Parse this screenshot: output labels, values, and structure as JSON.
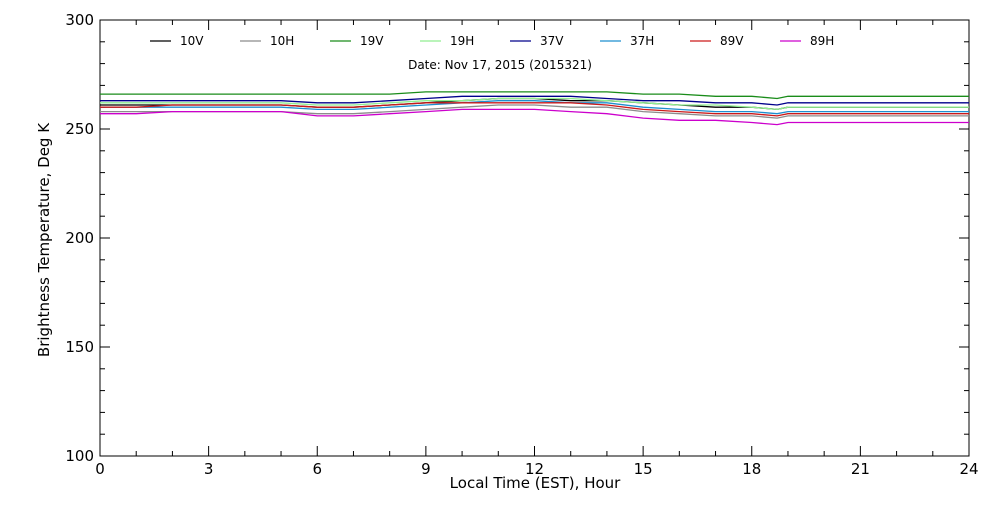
{
  "chart_data": {
    "type": "line",
    "title": "",
    "subtitle": "Date: Nov 17, 2015 (2015321)",
    "xlabel": "Local Time (EST), Hour",
    "ylabel": "Brightness Temperature, Deg K",
    "xlim": [
      0,
      24
    ],
    "ylim": [
      100,
      300
    ],
    "xticks": [
      0,
      3,
      6,
      9,
      12,
      15,
      18,
      21,
      24
    ],
    "yticks": [
      100,
      150,
      200,
      250,
      300
    ],
    "grid": false,
    "legend_position": "top",
    "x": [
      0,
      1,
      2,
      3,
      4,
      5,
      6,
      7,
      8,
      9,
      10,
      11,
      12,
      13,
      14,
      15,
      16,
      17,
      18,
      18.7,
      19,
      20,
      21,
      22,
      23,
      24
    ],
    "series": [
      {
        "name": "10V",
        "color": "#000000",
        "values": [
          261,
          261,
          261,
          261,
          261,
          261,
          260,
          260,
          261,
          262,
          263,
          264,
          264,
          263,
          263,
          262,
          261,
          260,
          260,
          259,
          260,
          260,
          260,
          260,
          260,
          260
        ]
      },
      {
        "name": "10H",
        "color": "#8c8c8c",
        "values": [
          258,
          258,
          258,
          258,
          258,
          258,
          257,
          257,
          258,
          259,
          260,
          261,
          261,
          260,
          260,
          258,
          257,
          256,
          256,
          255,
          256,
          256,
          256,
          256,
          256,
          256
        ]
      },
      {
        "name": "19V",
        "color": "#1a8c1a",
        "values": [
          266,
          266,
          266,
          266,
          266,
          266,
          266,
          266,
          266,
          267,
          267,
          267,
          267,
          267,
          267,
          266,
          266,
          265,
          265,
          264,
          265,
          265,
          265,
          265,
          265,
          265
        ]
      },
      {
        "name": "19H",
        "color": "#90ee90",
        "values": [
          262,
          262,
          262,
          262,
          262,
          262,
          261,
          261,
          262,
          263,
          263,
          264,
          264,
          264,
          263,
          262,
          261,
          261,
          260,
          259,
          260,
          260,
          260,
          260,
          260,
          260
        ]
      },
      {
        "name": "37V",
        "color": "#00008b",
        "values": [
          263,
          263,
          263,
          263,
          263,
          263,
          262,
          262,
          263,
          264,
          265,
          265,
          265,
          265,
          264,
          263,
          263,
          262,
          262,
          261,
          262,
          262,
          262,
          262,
          262,
          262
        ]
      },
      {
        "name": "37H",
        "color": "#1e8fcf",
        "values": [
          260,
          260,
          260,
          260,
          260,
          260,
          259,
          259,
          260,
          261,
          262,
          263,
          263,
          262,
          262,
          260,
          259,
          258,
          258,
          257,
          258,
          258,
          258,
          258,
          258,
          258
        ]
      },
      {
        "name": "89V",
        "color": "#cc1a1a",
        "values": [
          260,
          260,
          261,
          261,
          261,
          261,
          260,
          260,
          261,
          262,
          262,
          262,
          262,
          262,
          261,
          259,
          258,
          257,
          257,
          256,
          257,
          257,
          257,
          257,
          257,
          257
        ]
      },
      {
        "name": "89H",
        "color": "#cc00cc",
        "values": [
          257,
          257,
          258,
          258,
          258,
          258,
          256,
          256,
          257,
          258,
          259,
          259,
          259,
          258,
          257,
          255,
          254,
          254,
          253,
          252,
          253,
          253,
          253,
          253,
          253,
          253
        ]
      }
    ]
  }
}
